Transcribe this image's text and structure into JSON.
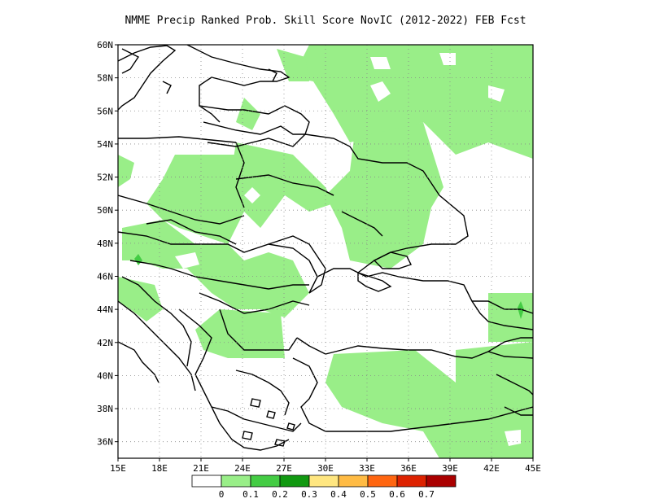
{
  "title": "NMME Precip Ranked Prob. Skill Score NovIC (2012-2022) FEB Fcst",
  "map": {
    "lon_range": [
      15,
      45
    ],
    "lat_range": [
      35,
      60
    ],
    "x_ticks": [
      "15E",
      "18E",
      "21E",
      "24E",
      "27E",
      "30E",
      "33E",
      "36E",
      "39E",
      "42E",
      "45E"
    ],
    "y_ticks": [
      "36N",
      "38N",
      "40N",
      "42N",
      "44N",
      "46N",
      "48N",
      "50N",
      "52N",
      "54N",
      "56N",
      "58N",
      "60N"
    ],
    "y_tick_values": [
      36,
      38,
      40,
      42,
      44,
      46,
      48,
      50,
      52,
      54,
      56,
      58,
      60
    ],
    "grid": "dotted"
  },
  "legend": {
    "colors": [
      "#ffffff",
      "#99ee88",
      "#44cc44",
      "#119911",
      "#ffe680",
      "#ffbb44",
      "#ff6611",
      "#dd2200",
      "#aa0000"
    ],
    "labels": [
      "0",
      "0.1",
      "0.2",
      "0.3",
      "0.4",
      "0.5",
      "0.6",
      "0.7"
    ]
  }
}
